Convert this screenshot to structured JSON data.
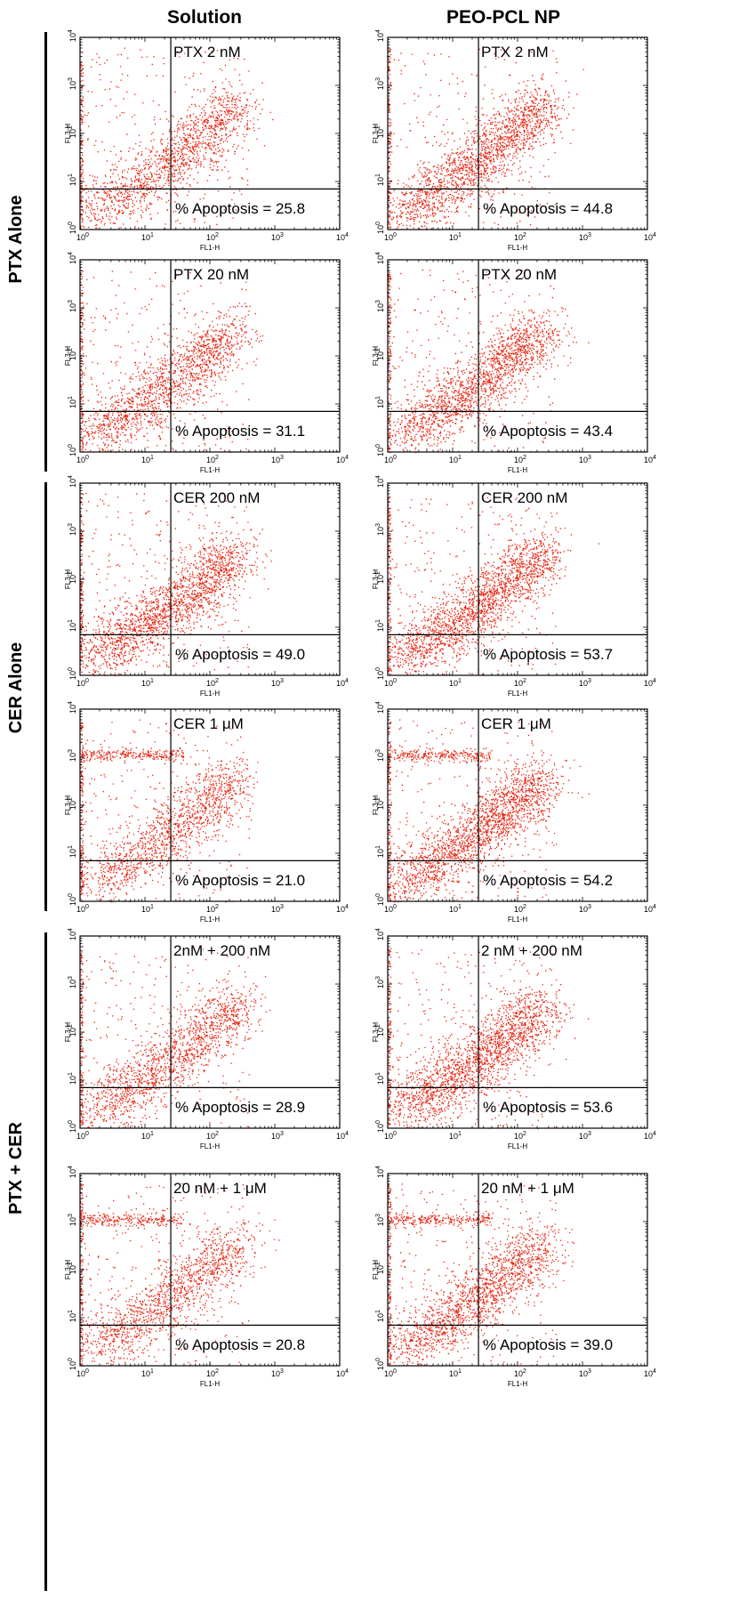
{
  "column_headers": [
    "Solution",
    "PEO-PCL NP"
  ],
  "row_groups": [
    "PTX Alone",
    "CER Alone",
    "PTX + CER"
  ],
  "colors": {
    "dots": "#e8220f",
    "axis": "#000000"
  },
  "chart_data": [
    {
      "type": "scatter",
      "column": "Solution",
      "group": "PTX Alone",
      "label": "PTX 2 nM",
      "annotation": "% Apoptosis = 25.8",
      "apoptosis_percent": 25.8,
      "xlabel": "FL1-H",
      "ylabel": "FL3-H",
      "scale": "log",
      "xlim": [
        1,
        10000
      ],
      "ylim": [
        1,
        10000
      ],
      "x_tick_labels": [
        "10^0",
        "10^1",
        "10^2",
        "10^3",
        "10^4"
      ],
      "y_tick_labels": [
        "10^0",
        "10^1",
        "10^2",
        "10^3",
        "10^4"
      ],
      "quadrant_gate": {
        "x": 25,
        "y": 7
      }
    },
    {
      "type": "scatter",
      "column": "PEO-PCL NP",
      "group": "PTX Alone",
      "label": "PTX 2 nM",
      "annotation": "% Apoptosis = 44.8",
      "apoptosis_percent": 44.8,
      "xlabel": "FL1-H",
      "ylabel": "FL3-H",
      "scale": "log",
      "xlim": [
        1,
        10000
      ],
      "ylim": [
        1,
        10000
      ],
      "x_tick_labels": [
        "10^0",
        "10^1",
        "10^2",
        "10^3",
        "10^4"
      ],
      "y_tick_labels": [
        "10^0",
        "10^1",
        "10^2",
        "10^3",
        "10^4"
      ],
      "quadrant_gate": {
        "x": 25,
        "y": 7
      }
    },
    {
      "type": "scatter",
      "column": "Solution",
      "group": "PTX Alone",
      "label": "PTX 20 nM",
      "annotation": "% Apoptosis = 31.1",
      "apoptosis_percent": 31.1,
      "xlabel": "FL1-H",
      "ylabel": "FL3-H",
      "scale": "log",
      "xlim": [
        1,
        10000
      ],
      "ylim": [
        1,
        10000
      ],
      "x_tick_labels": [
        "10^0",
        "10^1",
        "10^2",
        "10^3",
        "10^4"
      ],
      "y_tick_labels": [
        "10^0",
        "10^1",
        "10^2",
        "10^3",
        "10^4"
      ],
      "quadrant_gate": {
        "x": 25,
        "y": 7
      }
    },
    {
      "type": "scatter",
      "column": "PEO-PCL NP",
      "group": "PTX Alone",
      "label": "PTX 20 nM",
      "annotation": "% Apoptosis = 43.4",
      "apoptosis_percent": 43.4,
      "xlabel": "FL1-H",
      "ylabel": "FL3-H",
      "scale": "log",
      "xlim": [
        1,
        10000
      ],
      "ylim": [
        1,
        10000
      ],
      "x_tick_labels": [
        "10^0",
        "10^1",
        "10^2",
        "10^3",
        "10^4"
      ],
      "y_tick_labels": [
        "10^0",
        "10^1",
        "10^2",
        "10^3",
        "10^4"
      ],
      "quadrant_gate": {
        "x": 25,
        "y": 7
      }
    },
    {
      "type": "scatter",
      "column": "Solution",
      "group": "CER Alone",
      "label": "CER 200 nM",
      "annotation": "% Apoptosis = 49.0",
      "apoptosis_percent": 49.0,
      "xlabel": "FL1-H",
      "ylabel": "FL3-H",
      "scale": "log",
      "xlim": [
        1,
        10000
      ],
      "ylim": [
        1,
        10000
      ],
      "x_tick_labels": [
        "10^0",
        "10^1",
        "10^2",
        "10^3",
        "10^4"
      ],
      "y_tick_labels": [
        "10^0",
        "10^1",
        "10^2",
        "10^3",
        "10^4"
      ],
      "quadrant_gate": {
        "x": 25,
        "y": 7
      }
    },
    {
      "type": "scatter",
      "column": "PEO-PCL NP",
      "group": "CER Alone",
      "label": "CER 200 nM",
      "annotation": "% Apoptosis = 53.7",
      "apoptosis_percent": 53.7,
      "xlabel": "FL1-H",
      "ylabel": "FL3-H",
      "scale": "log",
      "xlim": [
        1,
        10000
      ],
      "ylim": [
        1,
        10000
      ],
      "x_tick_labels": [
        "10^0",
        "10^1",
        "10^2",
        "10^3",
        "10^4"
      ],
      "y_tick_labels": [
        "10^0",
        "10^1",
        "10^2",
        "10^3",
        "10^4"
      ],
      "quadrant_gate": {
        "x": 25,
        "y": 7
      }
    },
    {
      "type": "scatter",
      "column": "Solution",
      "group": "CER Alone",
      "label": "CER 1 μM",
      "annotation": "% Apoptosis = 21.0",
      "apoptosis_percent": 21.0,
      "xlabel": "FL1-H",
      "ylabel": "FL3-H",
      "scale": "log",
      "xlim": [
        1,
        10000
      ],
      "ylim": [
        1,
        10000
      ],
      "x_tick_labels": [
        "10^0",
        "10^1",
        "10^2",
        "10^3",
        "10^4"
      ],
      "y_tick_labels": [
        "10^0",
        "10^1",
        "10^2",
        "10^3",
        "10^4"
      ],
      "quadrant_gate": {
        "x": 25,
        "y": 7
      }
    },
    {
      "type": "scatter",
      "column": "PEO-PCL NP",
      "group": "CER Alone",
      "label": "CER 1 μM",
      "annotation": "% Apoptosis = 54.2",
      "apoptosis_percent": 54.2,
      "xlabel": "FL1-H",
      "ylabel": "FL3-H",
      "scale": "log",
      "xlim": [
        1,
        10000
      ],
      "ylim": [
        1,
        10000
      ],
      "x_tick_labels": [
        "10^0",
        "10^1",
        "10^2",
        "10^3",
        "10^4"
      ],
      "y_tick_labels": [
        "10^0",
        "10^1",
        "10^2",
        "10^3",
        "10^4"
      ],
      "quadrant_gate": {
        "x": 25,
        "y": 7
      }
    },
    {
      "type": "scatter",
      "column": "Solution",
      "group": "PTX + CER",
      "label": "2nM + 200  nM",
      "annotation": "% Apoptosis = 28.9",
      "apoptosis_percent": 28.9,
      "xlabel": "FL1-H",
      "ylabel": "FL3-H",
      "scale": "log",
      "xlim": [
        1,
        10000
      ],
      "ylim": [
        1,
        10000
      ],
      "x_tick_labels": [
        "10^0",
        "10^1",
        "10^2",
        "10^3",
        "10^4"
      ],
      "y_tick_labels": [
        "10^0",
        "10^1",
        "10^2",
        "10^3",
        "10^4"
      ],
      "quadrant_gate": {
        "x": 25,
        "y": 7
      }
    },
    {
      "type": "scatter",
      "column": "PEO-PCL NP",
      "group": "PTX + CER",
      "label": "2 nM + 200 nM",
      "annotation": "% Apoptosis = 53.6",
      "apoptosis_percent": 53.6,
      "xlabel": "FL1-H",
      "ylabel": "FL3-H",
      "scale": "log",
      "xlim": [
        1,
        10000
      ],
      "ylim": [
        1,
        10000
      ],
      "x_tick_labels": [
        "10^0",
        "10^1",
        "10^2",
        "10^3",
        "10^4"
      ],
      "y_tick_labels": [
        "10^0",
        "10^1",
        "10^2",
        "10^3",
        "10^4"
      ],
      "quadrant_gate": {
        "x": 25,
        "y": 7
      }
    },
    {
      "type": "scatter",
      "column": "Solution",
      "group": "PTX + CER",
      "label": "20 nM + 1 μM",
      "annotation": "% Apoptosis = 20.8",
      "apoptosis_percent": 20.8,
      "xlabel": "FL1-H",
      "ylabel": "FL3-H",
      "scale": "log",
      "xlim": [
        1,
        10000
      ],
      "ylim": [
        1,
        10000
      ],
      "x_tick_labels": [
        "10^0",
        "10^1",
        "10^2",
        "10^3",
        "10^4"
      ],
      "y_tick_labels": [
        "10^0",
        "10^1",
        "10^2",
        "10^3",
        "10^4"
      ],
      "quadrant_gate": {
        "x": 25,
        "y": 7
      }
    },
    {
      "type": "scatter",
      "column": "PEO-PCL NP",
      "group": "PTX + CER",
      "label": "20 nM + 1 μM",
      "annotation": "% Apoptosis = 39.0",
      "apoptosis_percent": 39.0,
      "xlabel": "FL1-H",
      "ylabel": "FL3-H",
      "scale": "log",
      "xlim": [
        1,
        10000
      ],
      "ylim": [
        1,
        10000
      ],
      "x_tick_labels": [
        "10^0",
        "10^1",
        "10^2",
        "10^3",
        "10^4"
      ],
      "y_tick_labels": [
        "10^0",
        "10^1",
        "10^2",
        "10^3",
        "10^4"
      ],
      "quadrant_gate": {
        "x": 25,
        "y": 7
      }
    }
  ]
}
